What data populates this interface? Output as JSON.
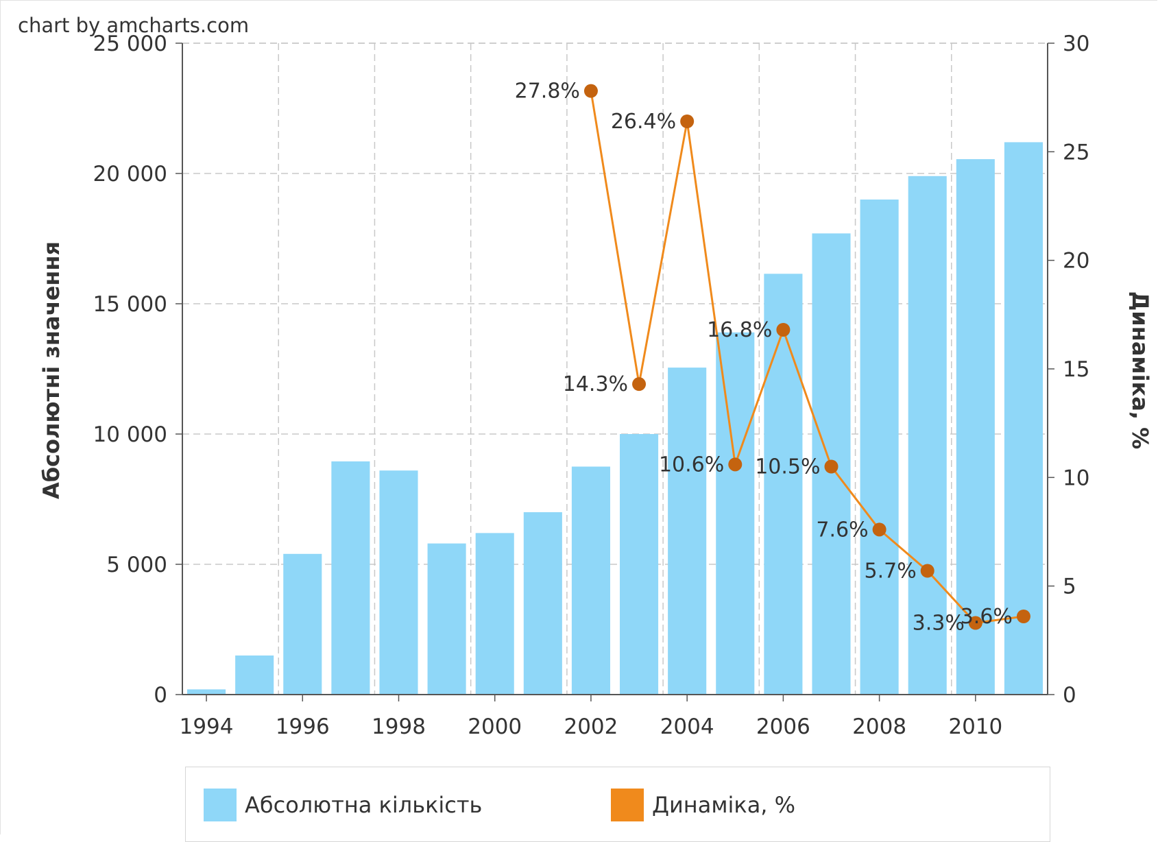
{
  "credit": "chart by amcharts.com",
  "colors": {
    "bars": "#8fd7f8",
    "line": "#f08a1c",
    "point": "#c4630f",
    "grid": "#c8c8c8",
    "axis": "#555555",
    "text": "#333333"
  },
  "chart_data": {
    "type": "bar",
    "categories": [
      "1994",
      "1995",
      "1996",
      "1997",
      "1998",
      "1999",
      "2000",
      "2001",
      "2002",
      "2003",
      "2004",
      "2005",
      "2006",
      "2007",
      "2008",
      "2009",
      "2010",
      "2011"
    ],
    "x_tick_labels": [
      "1994",
      "1996",
      "1998",
      "2000",
      "2002",
      "2004",
      "2006",
      "2008",
      "2010"
    ],
    "ylabel": "Абсолютні значення",
    "y2label": "Динаміка, %",
    "ylim": [
      0,
      25000
    ],
    "y2lim": [
      0,
      30
    ],
    "y_ticks": [
      0,
      5000,
      10000,
      15000,
      20000,
      25000
    ],
    "y_tick_labels": [
      "0",
      "5 000",
      "10 000",
      "15 000",
      "20 000",
      "25 000"
    ],
    "y2_ticks": [
      0,
      5,
      10,
      15,
      20,
      25,
      30
    ],
    "y2_tick_labels": [
      "0",
      "5",
      "10",
      "15",
      "20",
      "25",
      "30"
    ],
    "grid": true,
    "legend_position": "bottom",
    "series": [
      {
        "name": "Абсолютна кількість",
        "type": "bar",
        "axis": "left",
        "values": [
          200,
          1500,
          5400,
          8950,
          8600,
          5800,
          6200,
          7000,
          8750,
          10000,
          12550,
          13900,
          16150,
          17700,
          19000,
          19900,
          20550,
          21200
        ]
      },
      {
        "name": "Динаміка, %",
        "type": "line",
        "axis": "right",
        "values": [
          null,
          null,
          null,
          null,
          null,
          null,
          null,
          null,
          27.8,
          14.3,
          26.4,
          10.6,
          16.8,
          10.5,
          7.6,
          5.7,
          3.3,
          3.6
        ],
        "data_labels": [
          "",
          "",
          "",
          "",
          "",
          "",
          "",
          "",
          "27.8%",
          "14.3%",
          "26.4%",
          "10.6%",
          "16.8%",
          "10.5%",
          "7.6%",
          "5.7%",
          "3.3%",
          "3.6%"
        ]
      }
    ]
  }
}
